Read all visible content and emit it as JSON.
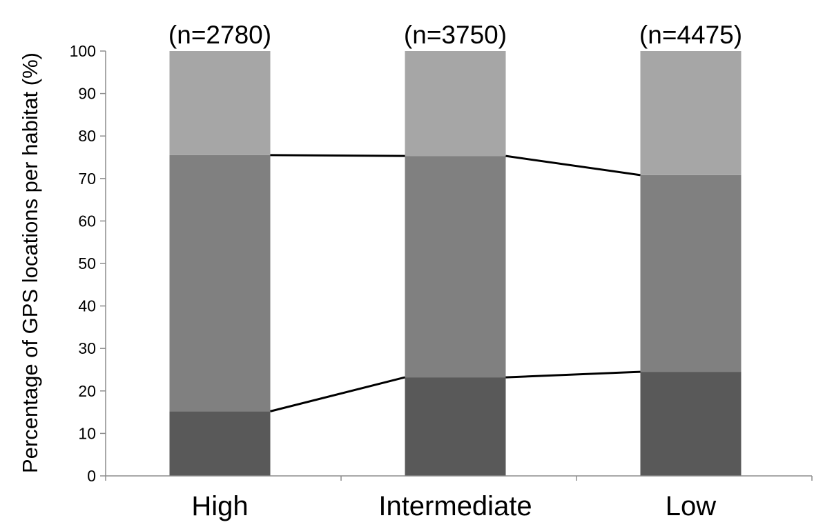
{
  "chart_data": {
    "type": "bar",
    "stacked": true,
    "title": "",
    "xlabel": "",
    "ylabel": "Percentage of GPS locations per habitat (%)",
    "ylim": [
      0,
      100
    ],
    "yticks": [
      "0",
      "10",
      "20",
      "30",
      "40",
      "50",
      "60",
      "70",
      "80",
      "90",
      "100"
    ],
    "categories": [
      "High",
      "Intermediate",
      "Low"
    ],
    "sample_sizes": [
      "(n=2780)",
      "(n=3750)",
      "(n=4475)"
    ],
    "series": [
      {
        "values": [
          15.2,
          23.2,
          24.5
        ],
        "color": "#595959"
      },
      {
        "values": [
          60.3,
          52.1,
          46.3
        ],
        "color": "#808080"
      },
      {
        "values": [
          24.5,
          24.7,
          29.2
        ],
        "color": "#a6a6a6"
      }
    ],
    "connector_color": "#000000",
    "grid": false,
    "legend": "none"
  }
}
